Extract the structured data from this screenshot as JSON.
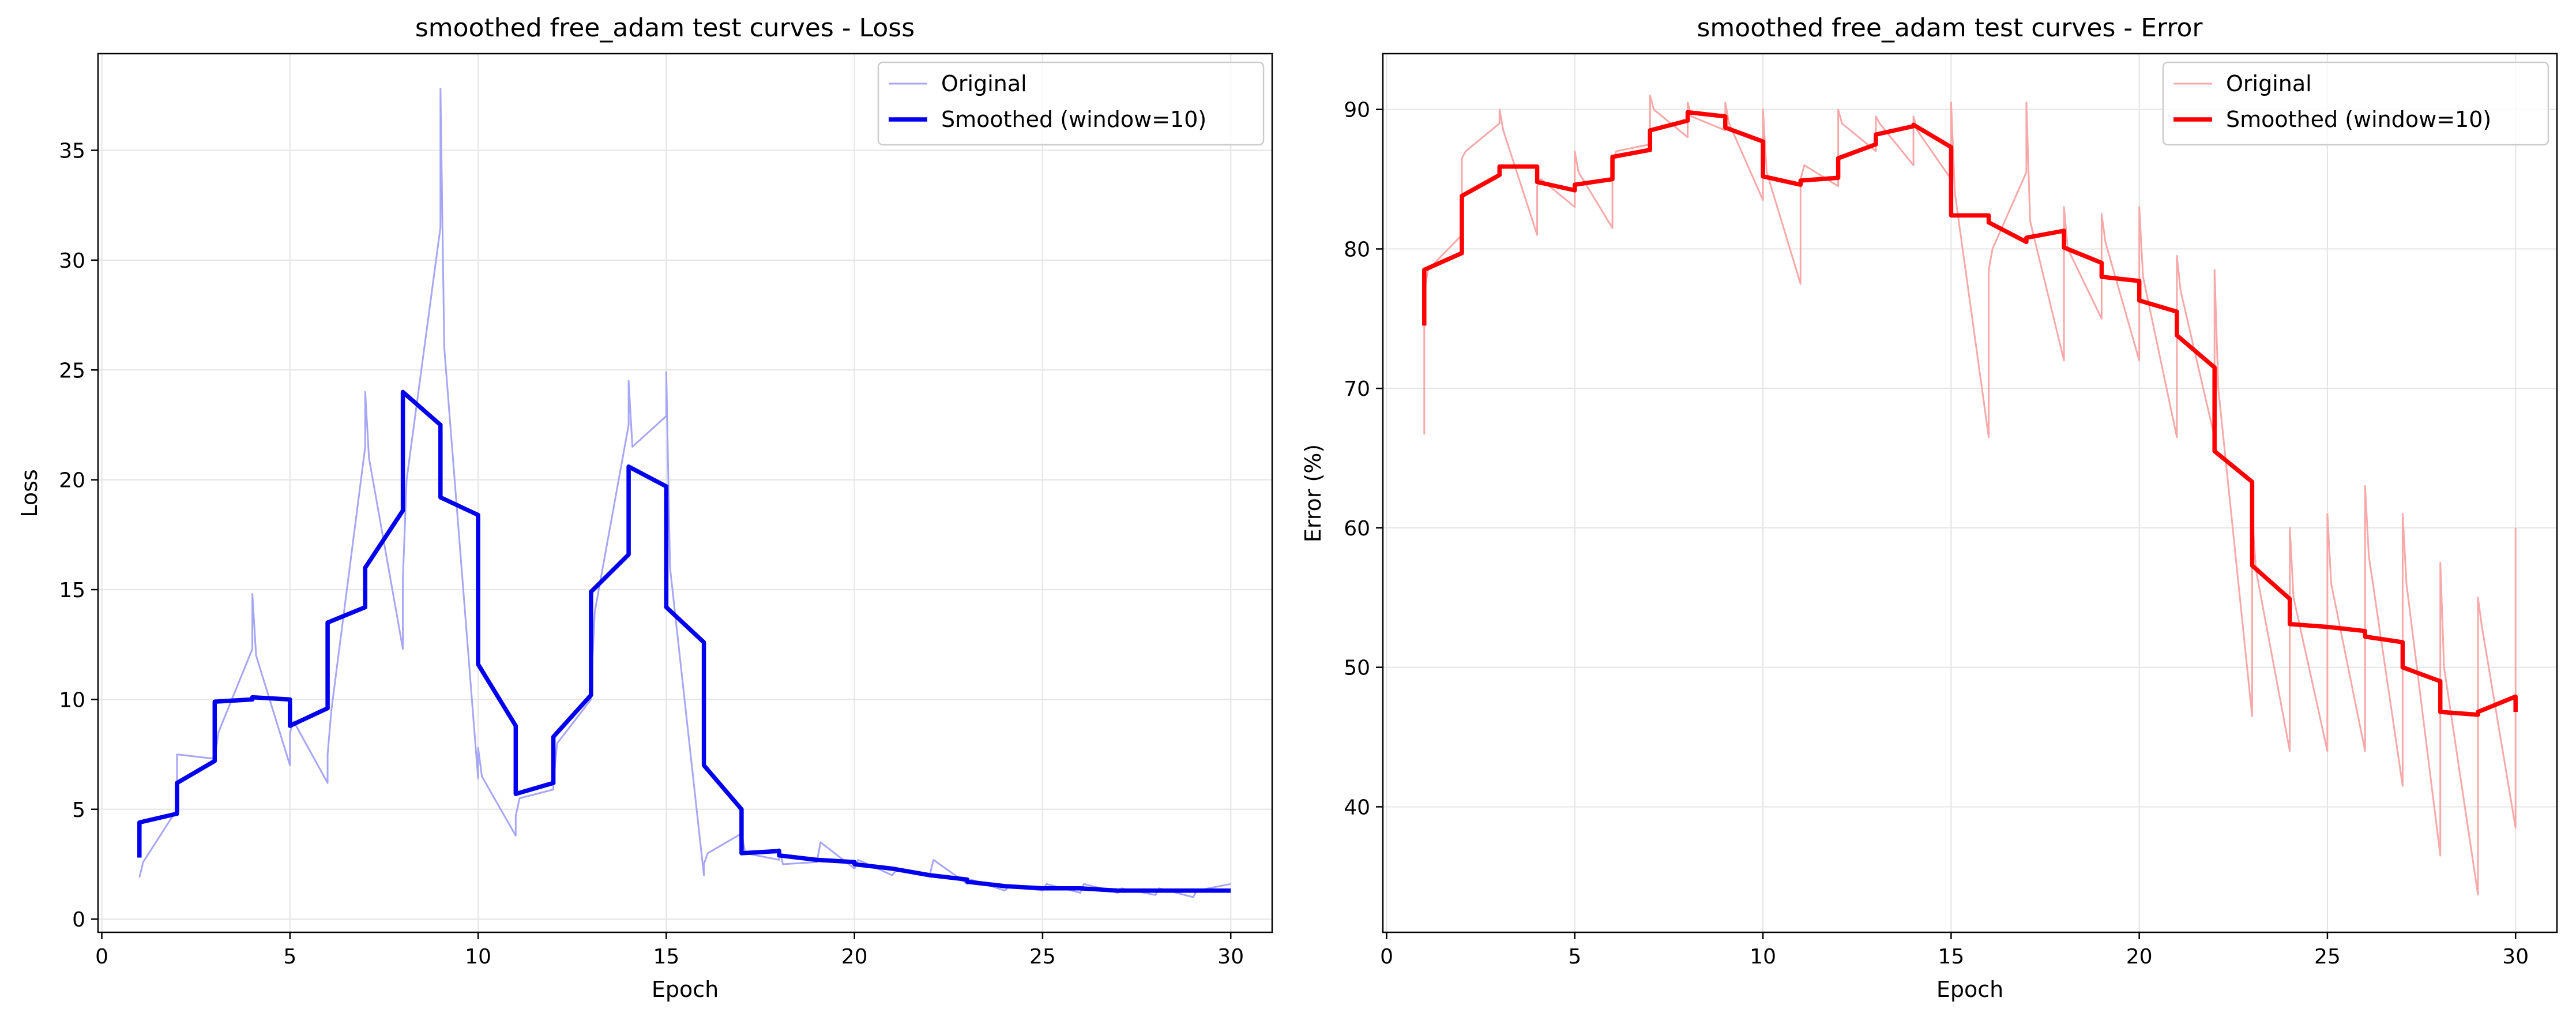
{
  "figure": {
    "colors": {
      "loss_original": "#a6a6f5",
      "loss_smoothed": "#0000ee",
      "error_original": "#f7a8a8",
      "error_smoothed": "#ff0000",
      "grid": "#e6e6e6"
    }
  },
  "chart_data": [
    {
      "type": "line",
      "title": "smoothed free_adam test curves - Loss",
      "xlabel": "Epoch",
      "ylabel": "Loss",
      "xlim": [
        -0.1,
        31.1
      ],
      "ylim": [
        -0.6,
        39.4
      ],
      "xticks": [
        0,
        5,
        10,
        15,
        20,
        25,
        30
      ],
      "yticks": [
        0,
        5,
        10,
        15,
        20,
        25,
        30,
        35
      ],
      "grid": true,
      "legend": {
        "placement": "top-right",
        "entries": [
          "Original",
          "Smoothed (window=10)"
        ]
      },
      "series": [
        {
          "name": "Original",
          "style": "thin",
          "x": [
            1.0,
            1.1,
            2.0,
            2.0,
            3.0,
            3.1,
            4.0,
            4.0,
            4.1,
            5.0,
            5.0,
            5.1,
            6.0,
            6.0,
            6.1,
            7.0,
            7.0,
            7.1,
            8.0,
            8.0,
            8.1,
            9.0,
            9.0,
            9.1,
            10.0,
            10.0,
            10.1,
            11.0,
            11.0,
            11.1,
            12.0,
            12.0,
            12.1,
            13.0,
            13.0,
            13.1,
            14.0,
            14.0,
            14.1,
            15.0,
            15.0,
            15.1,
            16.0,
            16.0,
            16.1,
            17.0,
            17.1,
            18.0,
            18.0,
            18.1,
            19.0,
            19.1,
            20.0,
            20.1,
            21.0,
            21.1,
            22.0,
            22.1,
            23.0,
            23.1,
            24.0,
            24.1,
            25.0,
            25.1,
            26.0,
            26.1,
            27.0,
            27.1,
            28.0,
            28.1,
            29.0,
            29.1,
            30.0
          ],
          "y": [
            1.9,
            2.6,
            5.0,
            7.5,
            7.3,
            8.5,
            12.3,
            14.8,
            12.0,
            7.0,
            8.5,
            9.0,
            6.2,
            7.5,
            9.5,
            21.5,
            24.0,
            21.0,
            12.3,
            15.5,
            20.0,
            31.5,
            37.8,
            26.0,
            6.4,
            7.8,
            6.5,
            3.8,
            4.7,
            5.5,
            5.9,
            6.2,
            8.0,
            10.0,
            10.5,
            14.0,
            22.5,
            24.5,
            21.5,
            22.9,
            24.9,
            16.0,
            2.0,
            2.5,
            3.0,
            3.9,
            3.0,
            2.7,
            3.2,
            2.5,
            2.6,
            3.5,
            2.3,
            2.7,
            2.0,
            2.2,
            2.0,
            2.7,
            1.6,
            1.8,
            1.3,
            1.5,
            1.3,
            1.6,
            1.2,
            1.6,
            1.2,
            1.4,
            1.1,
            1.4,
            1.0,
            1.3,
            1.6
          ]
        },
        {
          "name": "Smoothed (window=10)",
          "style": "thick",
          "x": [
            1.0,
            1.0,
            2.0,
            2.0,
            3.0,
            3.0,
            4.0,
            4.0,
            5.0,
            5.0,
            6.0,
            6.0,
            7.0,
            7.0,
            8.0,
            8.0,
            9.0,
            9.0,
            10.0,
            10.0,
            11.0,
            11.0,
            12.0,
            12.0,
            13.0,
            13.0,
            14.0,
            14.0,
            15.0,
            15.0,
            16.0,
            16.0,
            17.0,
            17.0,
            18.0,
            18.0,
            19.0,
            19.0,
            20.0,
            20.0,
            21.0,
            21.0,
            22.0,
            22.0,
            23.0,
            23.0,
            24.0,
            24.0,
            25.0,
            25.0,
            26.0,
            26.0,
            27.0,
            27.0,
            28.0,
            28.0,
            29.0,
            29.0,
            30.0
          ],
          "y": [
            2.8,
            4.4,
            4.8,
            6.2,
            7.2,
            9.9,
            10.0,
            10.1,
            10.0,
            8.8,
            9.6,
            13.5,
            14.2,
            16.0,
            18.6,
            24.0,
            22.5,
            19.2,
            18.4,
            11.6,
            8.8,
            5.7,
            6.2,
            8.3,
            10.2,
            14.9,
            16.6,
            20.6,
            19.7,
            14.2,
            12.6,
            7.0,
            5.0,
            3.0,
            3.1,
            2.9,
            2.7,
            2.7,
            2.6,
            2.5,
            2.3,
            2.3,
            2.0,
            2.0,
            1.8,
            1.7,
            1.5,
            1.5,
            1.4,
            1.4,
            1.4,
            1.4,
            1.3,
            1.3,
            1.3,
            1.3,
            1.3,
            1.3,
            1.3
          ]
        }
      ]
    },
    {
      "type": "line",
      "title": "smoothed free_adam test curves - Error",
      "xlabel": "Epoch",
      "ylabel": "Error (%)",
      "xlim": [
        -0.1,
        31.1
      ],
      "ylim": [
        31.0,
        94.0
      ],
      "xticks": [
        0,
        5,
        10,
        15,
        20,
        25,
        30
      ],
      "yticks": [
        40,
        50,
        60,
        70,
        80,
        90
      ],
      "grid": true,
      "legend": {
        "placement": "top-right",
        "entries": [
          "Original",
          "Smoothed (window=10)"
        ]
      },
      "series": [
        {
          "name": "Original",
          "style": "thin",
          "x": [
            1.0,
            1.0,
            1.1,
            2.0,
            2.0,
            2.1,
            3.0,
            3.0,
            3.1,
            4.0,
            4.0,
            4.1,
            5.0,
            5.0,
            5.1,
            6.0,
            6.0,
            6.1,
            7.0,
            7.0,
            7.1,
            8.0,
            8.0,
            8.1,
            9.0,
            9.0,
            9.1,
            10.0,
            10.0,
            10.1,
            11.0,
            11.0,
            11.1,
            12.0,
            12.0,
            12.1,
            13.0,
            13.0,
            13.1,
            14.0,
            14.0,
            14.1,
            15.0,
            15.0,
            15.1,
            16.0,
            16.0,
            16.1,
            17.0,
            17.0,
            17.1,
            18.0,
            18.0,
            18.1,
            19.0,
            19.0,
            19.1,
            20.0,
            20.0,
            20.1,
            21.0,
            21.0,
            21.1,
            22.0,
            22.0,
            22.1,
            23.0,
            23.0,
            23.1,
            24.0,
            24.0,
            24.1,
            25.0,
            25.0,
            25.1,
            26.0,
            26.0,
            26.1,
            27.0,
            27.0,
            27.1,
            28.0,
            28.0,
            28.1,
            29.0,
            29.0,
            29.1,
            30.0,
            30.0
          ],
          "y": [
            66.7,
            77.0,
            78.5,
            81.0,
            86.5,
            87.0,
            89.0,
            90.0,
            88.5,
            81.0,
            84.5,
            85.0,
            83.0,
            87.0,
            85.5,
            81.5,
            86.0,
            87.0,
            87.5,
            91.0,
            90.0,
            88.0,
            90.5,
            89.5,
            88.5,
            90.5,
            89.0,
            83.5,
            90.0,
            85.5,
            77.5,
            85.0,
            86.0,
            84.5,
            90.0,
            89.0,
            87.0,
            89.5,
            89.0,
            86.0,
            89.5,
            88.5,
            85.0,
            90.5,
            84.0,
            66.5,
            78.5,
            80.0,
            85.5,
            90.5,
            82.0,
            72.0,
            83.0,
            80.0,
            75.0,
            82.5,
            80.5,
            72.0,
            83.0,
            78.0,
            66.5,
            79.5,
            77.0,
            66.5,
            78.5,
            70.0,
            46.5,
            61.0,
            57.0,
            44.0,
            60.0,
            55.0,
            44.0,
            61.0,
            56.0,
            44.0,
            63.0,
            58.0,
            41.5,
            61.0,
            56.0,
            36.5,
            57.5,
            50.0,
            33.7,
            55.0,
            53.0,
            38.5,
            60.0
          ]
        },
        {
          "name": "Smoothed (window=10)",
          "style": "thick",
          "x": [
            1.0,
            1.0,
            2.0,
            2.0,
            3.0,
            3.0,
            4.0,
            4.0,
            5.0,
            5.0,
            6.0,
            6.0,
            7.0,
            7.0,
            8.0,
            8.0,
            9.0,
            9.0,
            10.0,
            10.0,
            11.0,
            11.0,
            12.0,
            12.0,
            13.0,
            13.0,
            14.0,
            14.0,
            15.0,
            15.0,
            16.0,
            16.0,
            17.0,
            17.0,
            18.0,
            18.0,
            19.0,
            19.0,
            20.0,
            20.0,
            21.0,
            21.0,
            22.0,
            22.0,
            23.0,
            23.0,
            24.0,
            24.0,
            25.0,
            25.0,
            26.0,
            26.0,
            27.0,
            27.0,
            28.0,
            28.0,
            29.0,
            29.0,
            30.0,
            30.0
          ],
          "y": [
            74.5,
            78.5,
            79.7,
            83.8,
            85.3,
            85.9,
            85.9,
            84.8,
            84.2,
            84.6,
            85.0,
            86.6,
            87.1,
            88.5,
            89.2,
            89.8,
            89.5,
            88.7,
            87.7,
            85.2,
            84.6,
            84.9,
            85.1,
            86.5,
            87.5,
            88.2,
            88.8,
            88.9,
            87.3,
            82.4,
            82.4,
            81.9,
            80.5,
            80.8,
            81.3,
            80.1,
            79.0,
            78.0,
            77.7,
            76.3,
            75.5,
            73.8,
            71.5,
            65.5,
            63.3,
            57.3,
            54.9,
            53.1,
            52.9,
            52.9,
            52.6,
            52.2,
            51.8,
            50.0,
            49.0,
            46.8,
            46.6,
            46.8,
            47.9,
            46.8
          ]
        }
      ]
    }
  ]
}
